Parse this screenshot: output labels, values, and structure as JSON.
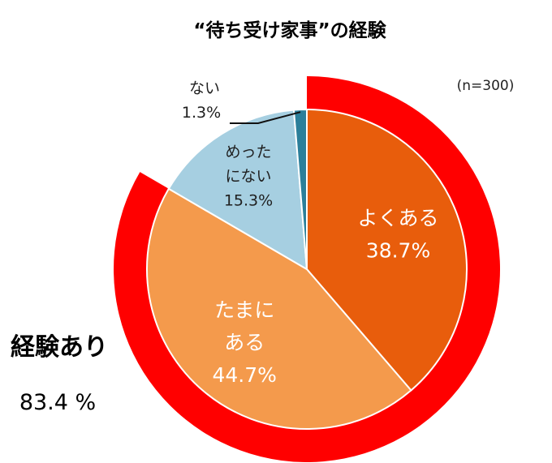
{
  "chart_data": {
    "type": "pie",
    "title": "“待ち受け家事”の経験",
    "note": "(n=300)",
    "categories": [
      "よくある",
      "たまにある",
      "めったにない",
      "ない"
    ],
    "values": [
      38.7,
      44.7,
      15.3,
      1.3
    ],
    "value_labels": [
      "38.7%",
      "44.7%",
      "15.3%",
      "1.3%"
    ],
    "label_lines": [
      [
        "よくある"
      ],
      [
        "たまに",
        "ある"
      ],
      [
        "めった",
        "にない"
      ],
      [
        "ない"
      ]
    ],
    "colors": [
      "#e85d0c",
      "#f49a4c",
      "#a6cfe1",
      "#2b7f9a"
    ],
    "label_colors": [
      "#ffffff",
      "#ffffff",
      "#1f1f1f",
      "#1f1f1f"
    ],
    "outer_ring": {
      "color": "#ff0000",
      "label": "経験あり",
      "value": 83.4,
      "value_label": "83.4 %"
    }
  }
}
